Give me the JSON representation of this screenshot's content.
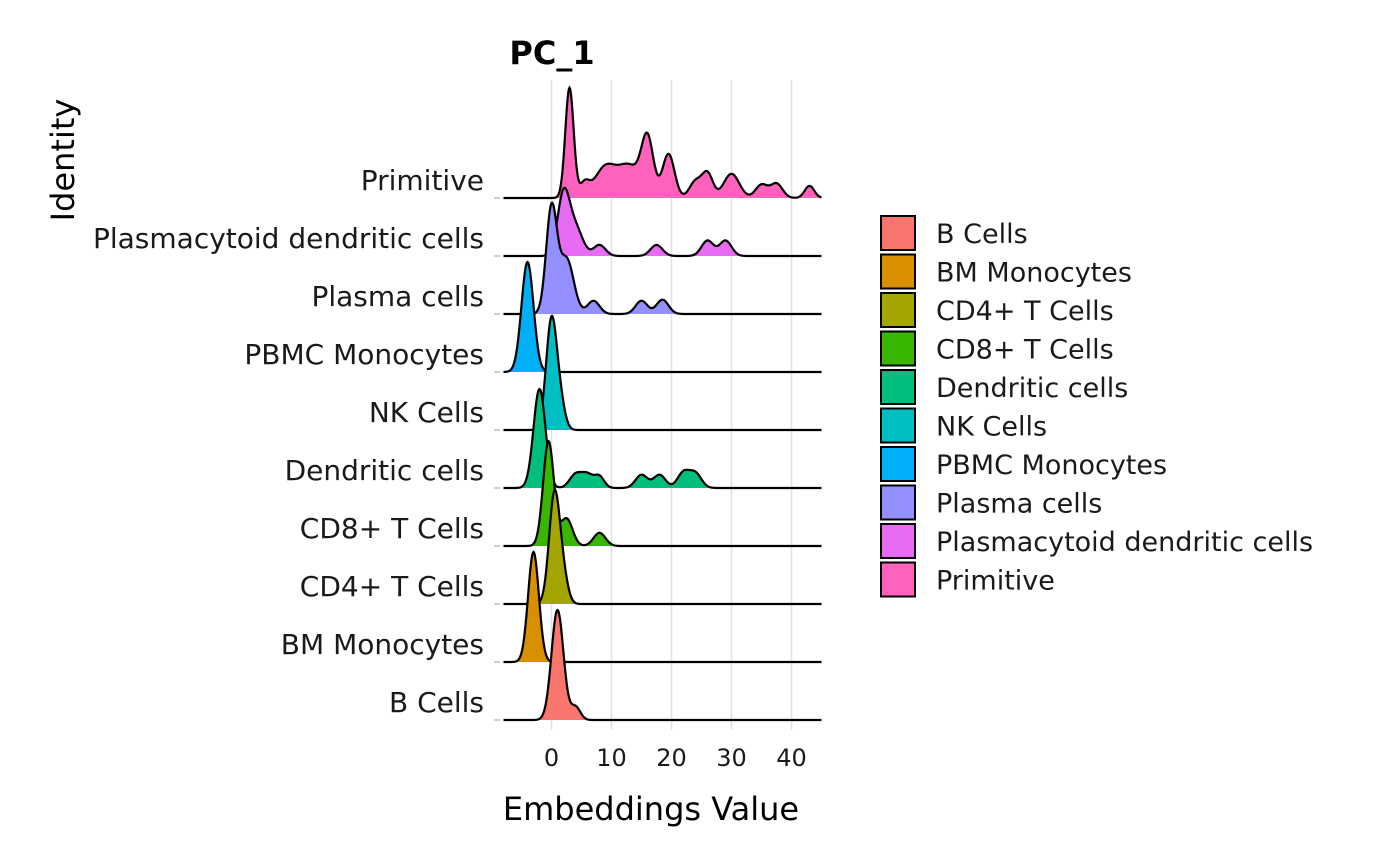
{
  "chart_data": {
    "type": "ridgeline",
    "title": "PC_1",
    "xlabel": "Embeddings Value",
    "ylabel": "Identity",
    "xlim": [
      -8,
      45
    ],
    "xticks": [
      0,
      10,
      20,
      30,
      40
    ],
    "grid": true,
    "legend_position": "right",
    "categories": [
      "B Cells",
      "BM Monocytes",
      "CD4+ T Cells",
      "CD8+ T Cells",
      "Dendritic cells",
      "NK Cells",
      "PBMC Monocytes",
      "Plasma cells",
      "Plasmacytoid dendritic cells",
      "Primitive"
    ],
    "series": [
      {
        "name": "B Cells",
        "color": "#F8766D",
        "peaks": [
          [
            1,
            1.0,
            1.0
          ],
          [
            4,
            0.12,
            0.8
          ]
        ]
      },
      {
        "name": "BM Monocytes",
        "color": "#D89000",
        "peaks": [
          [
            -3,
            1.0,
            0.9
          ]
        ]
      },
      {
        "name": "CD4+ T Cells",
        "color": "#A3A500",
        "peaks": [
          [
            0.5,
            1.0,
            0.9
          ],
          [
            2,
            0.2,
            0.8
          ]
        ]
      },
      {
        "name": "CD8+ T Cells",
        "color": "#39B600",
        "peaks": [
          [
            -0.5,
            0.95,
            0.9
          ],
          [
            2.5,
            0.25,
            1.0
          ],
          [
            8,
            0.12,
            1.0
          ]
        ]
      },
      {
        "name": "Dendritic cells",
        "color": "#00BF7D",
        "peaks": [
          [
            -2,
            0.9,
            1.0
          ],
          [
            4,
            0.12,
            1.0
          ],
          [
            6,
            0.12,
            1.0
          ],
          [
            8,
            0.1,
            0.8
          ],
          [
            15,
            0.12,
            1.0
          ],
          [
            18,
            0.12,
            1.0
          ],
          [
            22,
            0.14,
            1.0
          ],
          [
            24,
            0.13,
            1.0
          ]
        ]
      },
      {
        "name": "NK Cells",
        "color": "#00BFC4",
        "peaks": [
          [
            0,
            1.0,
            0.9
          ],
          [
            1.5,
            0.2,
            0.8
          ]
        ]
      },
      {
        "name": "PBMC Monocytes",
        "color": "#00B0F6",
        "peaks": [
          [
            -4,
            1.0,
            1.0
          ]
        ]
      },
      {
        "name": "Plasma cells",
        "color": "#9590FF",
        "peaks": [
          [
            0,
            0.95,
            0.9
          ],
          [
            2.5,
            0.5,
            1.2
          ],
          [
            7,
            0.12,
            1.0
          ],
          [
            15,
            0.12,
            1.0
          ],
          [
            18.5,
            0.13,
            1.0
          ]
        ]
      },
      {
        "name": "Plasmacytoid dendritic cells",
        "color": "#E76BF3",
        "peaks": [
          [
            2,
            0.55,
            1.0
          ],
          [
            4,
            0.25,
            1.2
          ],
          [
            8,
            0.1,
            1.0
          ],
          [
            17.5,
            0.1,
            1.0
          ],
          [
            26,
            0.14,
            1.0
          ],
          [
            29,
            0.14,
            1.0
          ]
        ]
      },
      {
        "name": "Primitive",
        "color": "#FF62BC",
        "peaks": [
          [
            3,
            1.0,
            0.7
          ],
          [
            5.5,
            0.12,
            0.8
          ],
          [
            9,
            0.28,
            1.8
          ],
          [
            13,
            0.28,
            1.8
          ],
          [
            16,
            0.52,
            1.0
          ],
          [
            19.5,
            0.4,
            1.0
          ],
          [
            24,
            0.15,
            1.0
          ],
          [
            26,
            0.22,
            0.9
          ],
          [
            30,
            0.22,
            1.3
          ],
          [
            35,
            0.12,
            1.0
          ],
          [
            37.5,
            0.13,
            1.0
          ],
          [
            43,
            0.11,
            0.8
          ]
        ]
      }
    ]
  }
}
